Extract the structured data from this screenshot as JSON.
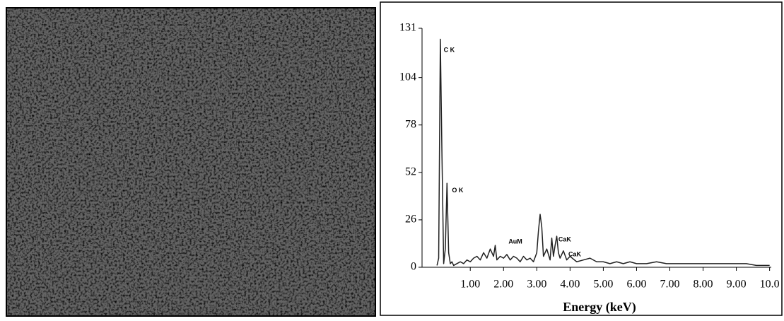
{
  "chart_data": {
    "type": "line",
    "x_label": "Energy (keV)",
    "x": [
      0.0,
      0.05,
      0.1,
      0.15,
      0.2,
      0.25,
      0.3,
      0.35,
      0.4,
      0.45,
      0.5,
      0.6,
      0.7,
      0.8,
      0.9,
      1.0,
      1.1,
      1.2,
      1.3,
      1.4,
      1.5,
      1.6,
      1.7,
      1.75,
      1.8,
      1.9,
      2.0,
      2.1,
      2.2,
      2.3,
      2.4,
      2.5,
      2.6,
      2.7,
      2.8,
      2.9,
      3.0,
      3.05,
      3.1,
      3.15,
      3.2,
      3.3,
      3.4,
      3.45,
      3.5,
      3.55,
      3.6,
      3.65,
      3.7,
      3.8,
      3.9,
      4.0,
      4.2,
      4.4,
      4.6,
      4.8,
      5.0,
      5.2,
      5.4,
      5.6,
      5.8,
      6.0,
      6.3,
      6.6,
      6.9,
      7.2,
      7.5,
      7.8,
      8.1,
      8.4,
      8.7,
      9.0,
      9.3,
      9.6,
      10.0
    ],
    "series": [
      {
        "color": "#222222",
        "values": [
          1,
          5,
          125,
          60,
          2,
          10,
          46,
          8,
          2,
          3,
          1,
          2,
          3,
          2,
          4,
          3,
          5,
          6,
          4,
          8,
          5,
          10,
          6,
          12,
          4,
          6,
          5,
          7,
          4,
          6,
          5,
          3,
          6,
          4,
          5,
          3,
          8,
          20,
          29,
          22,
          6,
          10,
          4,
          16,
          6,
          12,
          17,
          8,
          5,
          9,
          4,
          6,
          3,
          4,
          5,
          3,
          3,
          2,
          3,
          2,
          3,
          2,
          2,
          3,
          2,
          2,
          2,
          2,
          2,
          2,
          2,
          2,
          2,
          1,
          1
        ]
      }
    ],
    "annotations": [
      {
        "text": "C K"
      },
      {
        "text": "O K"
      },
      {
        "text": "AuM"
      },
      {
        "text": "CaK"
      },
      {
        "text": "CaK"
      }
    ],
    "xlim": [
      -0.45,
      10.05
    ],
    "ylim": [
      0,
      131
    ],
    "xticks": [
      {
        "value": 1,
        "label": "1.00"
      },
      {
        "value": 2,
        "label": "2.00"
      },
      {
        "value": 3,
        "label": "3.00"
      },
      {
        "value": 4,
        "label": "4.00"
      },
      {
        "value": 5,
        "label": "5.00"
      },
      {
        "value": 6,
        "label": "6.00"
      },
      {
        "value": 7,
        "label": "7.00"
      },
      {
        "value": 8,
        "label": "8.00"
      },
      {
        "value": 9,
        "label": "9.00"
      },
      {
        "value": 10,
        "label": "10.0"
      }
    ],
    "yticks": [
      0,
      26,
      52,
      78,
      104,
      131
    ]
  }
}
